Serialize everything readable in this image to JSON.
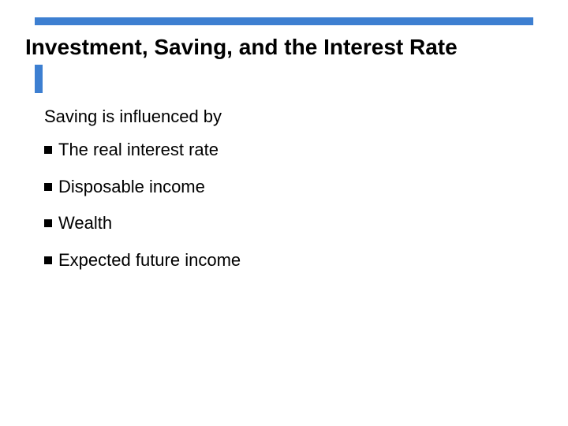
{
  "colors": {
    "accent": "#3d7fd1",
    "text": "#000000",
    "bullet_marker": "#000000",
    "background": "#ffffff"
  },
  "title": "Investment, Saving, and the Interest Rate",
  "intro": "Saving is influenced by",
  "bullets": [
    "The real interest rate",
    "Disposable income",
    "Wealth",
    "Expected future income"
  ]
}
